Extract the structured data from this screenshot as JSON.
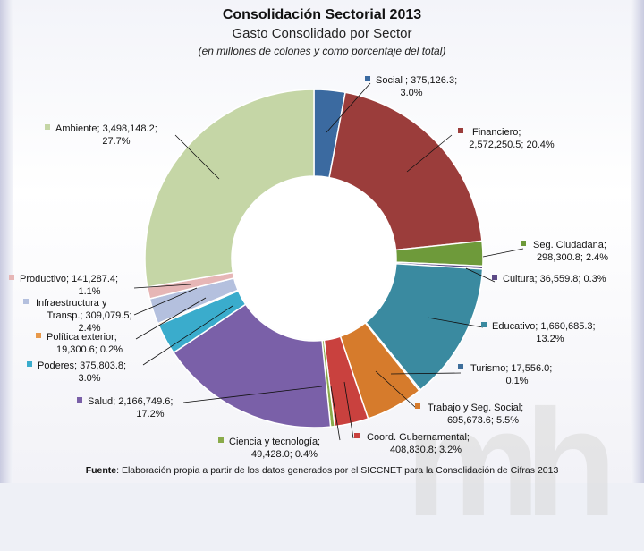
{
  "title": "Consolidación Sectorial 2013",
  "subtitle": "Gasto Consolidado por Sector",
  "unit_note": "(en millones de colones y como porcentaje del total)",
  "source_label": "Fuente",
  "source_text": ": Elaboración propia a partir de los datos generados por el SICCNET para la Consolidación de Cifras 2013",
  "watermark": "mh",
  "chart_data": {
    "type": "pie",
    "variant": "doughnut",
    "title": "Consolidación Sectorial 2013",
    "subtitle": "Gasto Consolidado por Sector",
    "units": "millones de colones",
    "slices": [
      {
        "name": "Social",
        "value": 375126.3,
        "percent": 3.0,
        "color": "#3b6aa0",
        "label_lines": [
          "Social ;  375,126.3;",
          "3.0%"
        ]
      },
      {
        "name": "Financiero",
        "value": 2572250.5,
        "percent": 20.4,
        "color": "#9b3d3b",
        "label_lines": [
          "Financiero;",
          "2,572,250.5; 20.4%"
        ]
      },
      {
        "name": "Seg. Ciudadana",
        "value": 298300.8,
        "percent": 2.4,
        "color": "#6e9a3a",
        "label_lines": [
          "Seg. Ciudadana;",
          "298,300.8;  2.4%"
        ]
      },
      {
        "name": "Cultura",
        "value": 36559.8,
        "percent": 0.3,
        "color": "#5c4a86",
        "label_lines": [
          "Cultura;  36,559.8; 0.3%"
        ]
      },
      {
        "name": "Educativo",
        "value": 1660685.3,
        "percent": 13.2,
        "color": "#3a8aa0",
        "label_lines": [
          "Educativo;  1,660,685.3;",
          "13.2%"
        ]
      },
      {
        "name": "Turismo",
        "value": 17556.0,
        "percent": 0.1,
        "color": "#3e6e9a",
        "label_lines": [
          "Turismo;  17,556.0;",
          "0.1%"
        ]
      },
      {
        "name": "Trabajo y Seg. Social",
        "value": 695673.6,
        "percent": 5.5,
        "color": "#d67b2c",
        "label_lines": [
          "Trabajo y Seg. Social;",
          "695,673.6; 5.5%"
        ]
      },
      {
        "name": "Coord. Gubernamental",
        "value": 408830.8,
        "percent": 3.2,
        "color": "#c9413e",
        "label_lines": [
          "Coord. Gubernamental;",
          "408,830.8; 3.2%"
        ]
      },
      {
        "name": "Ciencia y tecnología",
        "value": 49428.0,
        "percent": 0.4,
        "color": "#8aab4a",
        "label_lines": [
          "Ciencia y tecnología;",
          "49,428.0; 0.4%"
        ]
      },
      {
        "name": "Salud",
        "value": 2166749.6,
        "percent": 17.2,
        "color": "#7a60a8",
        "label_lines": [
          "Salud;  2,166,749.6;",
          "17.2%"
        ]
      },
      {
        "name": "Poderes",
        "value": 375803.8,
        "percent": 3.0,
        "color": "#3aaccc",
        "label_lines": [
          "Poderes;  375,803.8;",
          "3.0%"
        ]
      },
      {
        "name": "Política exterior",
        "value": 19300.6,
        "percent": 0.2,
        "color": "#e8994a",
        "label_lines": [
          "Política exterior;",
          "19,300.6; 0.2%"
        ]
      },
      {
        "name": "Infraestructura y Transp.",
        "value": 309079.5,
        "percent": 2.4,
        "color": "#b4c0de",
        "label_lines": [
          "Infraestructura y",
          "Transp.;  309,079.5;",
          "2.4%"
        ]
      },
      {
        "name": "Productivo",
        "value": 141287.4,
        "percent": 1.1,
        "color": "#e6b6b6",
        "label_lines": [
          "Productivo;  141,287.4;",
          "1.1%"
        ]
      },
      {
        "name": "Ambiente",
        "value": 3498148.2,
        "percent": 27.7,
        "color": "#c5d6a6",
        "label_lines": [
          "Ambiente;  3,498,148.2;",
          "27.7%"
        ]
      }
    ]
  }
}
